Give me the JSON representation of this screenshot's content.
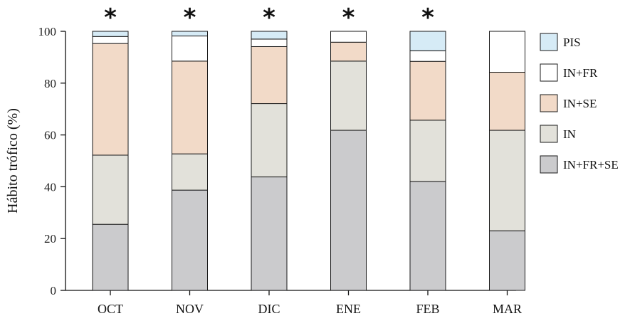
{
  "chart_data": {
    "type": "bar",
    "stacked": true,
    "categories": [
      "OCT",
      "NOV",
      "DIC",
      "ENE",
      "FEB",
      "MAR"
    ],
    "series": [
      {
        "name": "IN+FR+SE",
        "color": "#cbcbcd",
        "values": [
          25.5,
          38.7,
          43.8,
          61.8,
          42.0,
          23.0
        ]
      },
      {
        "name": "IN",
        "color": "#e2e1da",
        "values": [
          26.7,
          14.0,
          28.3,
          26.7,
          23.7,
          38.8
        ]
      },
      {
        "name": "IN+SE",
        "color": "#f2dac8",
        "values": [
          43.1,
          35.8,
          22.0,
          7.3,
          22.7,
          22.4
        ]
      },
      {
        "name": "IN+FR",
        "color": "#ffffff",
        "values": [
          2.7,
          9.7,
          2.9,
          4.2,
          4.1,
          15.8
        ]
      },
      {
        "name": "PIS",
        "color": "#d6ebf6",
        "values": [
          2.0,
          1.8,
          3.0,
          0.0,
          7.5,
          0.0
        ]
      }
    ],
    "significance_marker": "*",
    "significant": [
      true,
      true,
      true,
      true,
      true,
      false
    ],
    "ylabel": "Hábito trófico (%)",
    "yticks": [
      "0",
      "20",
      "40",
      "60",
      "80",
      "100"
    ],
    "ylim": [
      0,
      100
    ],
    "grid": false,
    "legend_position": "right",
    "legend_order": [
      "PIS",
      "IN+FR",
      "IN+SE",
      "IN",
      "IN+FR+SE"
    ]
  }
}
